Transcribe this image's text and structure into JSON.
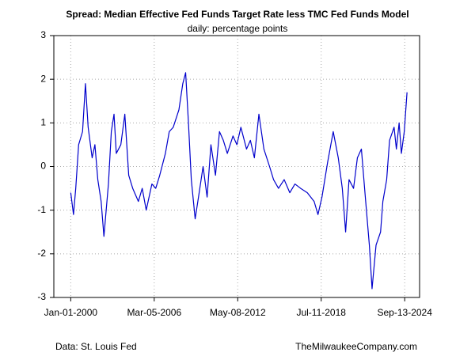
{
  "chart_data": {
    "type": "line",
    "title": "Spread: Median Effective Fed Funds Target Rate less TMC Fed Funds Model",
    "subtitle": "daily: percentage points",
    "source": "Data: St. Louis Fed",
    "credit": "TheMilwaukeeCompany.com",
    "x": [
      "2000-01-01",
      "2000-03-15",
      "2000-05-15",
      "2000-08-01",
      "2000-11-15",
      "2001-02-01",
      "2001-04-15",
      "2001-08-01",
      "2001-10-15",
      "2002-01-01",
      "2002-04-01",
      "2002-06-15",
      "2002-10-15",
      "2003-01-01",
      "2003-03-15",
      "2003-05-15",
      "2003-09-15",
      "2004-01-01",
      "2004-04-15",
      "2004-08-01",
      "2005-01-01",
      "2005-04-15",
      "2005-08-01",
      "2006-01-01",
      "2006-04-15",
      "2006-08-01",
      "2007-01-01",
      "2007-04-15",
      "2007-08-01",
      "2008-01-01",
      "2008-04-15",
      "2008-07-01",
      "2008-09-15",
      "2008-12-01",
      "2009-03-15",
      "2009-07-01",
      "2009-10-15",
      "2010-02-01",
      "2010-05-15",
      "2010-09-15",
      "2011-01-01",
      "2011-04-15",
      "2011-08-01",
      "2012-01-01",
      "2012-04-15",
      "2012-08-01",
      "2013-01-01",
      "2013-04-15",
      "2013-08-01",
      "2013-12-01",
      "2014-04-15",
      "2014-09-15",
      "2015-01-01",
      "2015-05-15",
      "2015-10-15",
      "2016-03-15",
      "2016-08-01",
      "2017-01-01",
      "2017-07-01",
      "2018-01-01",
      "2018-04-15",
      "2018-08-01",
      "2019-01-01",
      "2019-06-01",
      "2019-10-15",
      "2020-02-01",
      "2020-05-01",
      "2020-08-01",
      "2020-12-01",
      "2021-03-15",
      "2021-07-01",
      "2021-10-15",
      "2022-02-01",
      "2022-04-15",
      "2022-08-01",
      "2022-12-01",
      "2023-02-01",
      "2023-05-15",
      "2023-08-01",
      "2023-12-01",
      "2024-02-01",
      "2024-04-15",
      "2024-06-15",
      "2024-09-01",
      "2024-11-15"
    ],
    "series": [
      {
        "name": "Spread",
        "color": "#0000cc",
        "values": [
          -0.6,
          -1.1,
          -0.5,
          0.5,
          0.8,
          1.9,
          0.9,
          0.2,
          0.5,
          -0.3,
          -0.8,
          -1.6,
          -0.4,
          0.8,
          1.2,
          0.3,
          0.5,
          1.2,
          -0.2,
          -0.5,
          -0.8,
          -0.5,
          -1.0,
          -0.4,
          -0.5,
          -0.2,
          0.3,
          0.8,
          0.9,
          1.3,
          1.9,
          2.15,
          1.0,
          -0.3,
          -1.2,
          -0.6,
          0.0,
          -0.7,
          0.5,
          -0.2,
          0.8,
          0.6,
          0.3,
          0.7,
          0.5,
          0.9,
          0.4,
          0.6,
          0.2,
          1.2,
          0.4,
          0.0,
          -0.3,
          -0.5,
          -0.3,
          -0.6,
          -0.4,
          -0.5,
          -0.6,
          -0.8,
          -1.1,
          -0.7,
          0.1,
          0.8,
          0.2,
          -0.5,
          -1.5,
          -0.3,
          -0.5,
          0.2,
          0.4,
          -0.7,
          -1.8,
          -2.8,
          -1.8,
          -1.5,
          -0.8,
          -0.3,
          0.6,
          0.9,
          0.4,
          1.0,
          0.3,
          0.8,
          1.7
        ]
      }
    ],
    "xlim": [
      "1998-10-01",
      "2025-10-20"
    ],
    "xticks": [
      {
        "value": "2000-01-01",
        "label": "Jan-01-2000"
      },
      {
        "value": "2006-03-05",
        "label": "Mar-05-2006"
      },
      {
        "value": "2012-05-08",
        "label": "May-08-2012"
      },
      {
        "value": "2018-07-11",
        "label": "Jul-11-2018"
      },
      {
        "value": "2024-09-13",
        "label": "Sep-13-2024"
      }
    ],
    "ylim": [
      -3,
      3
    ],
    "yticks": [
      -3,
      -2,
      -1,
      0,
      1,
      2,
      3
    ],
    "grid": true
  }
}
